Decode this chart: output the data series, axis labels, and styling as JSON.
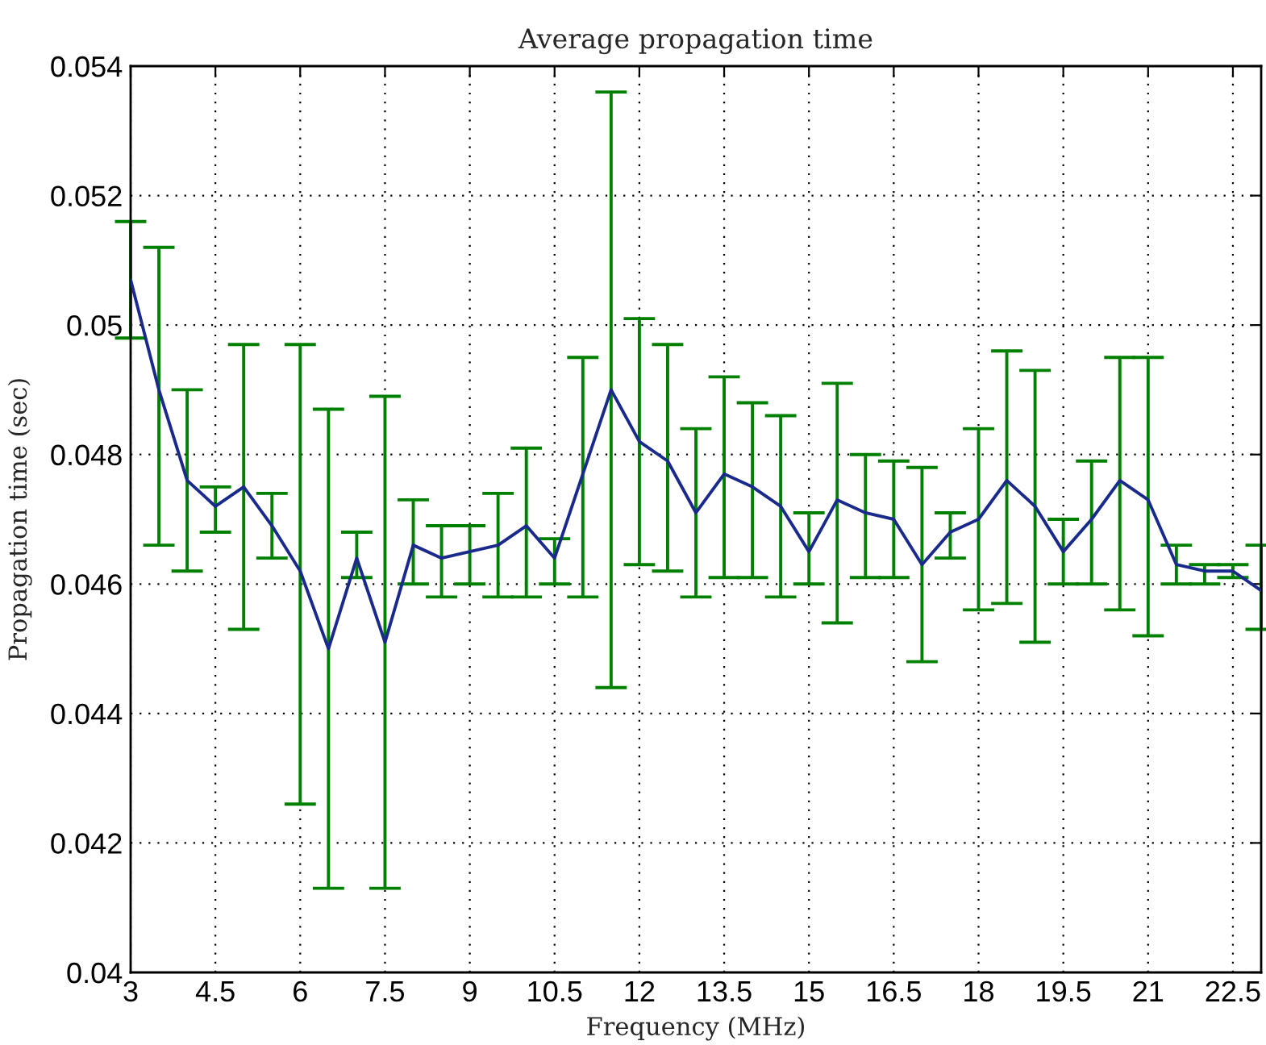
{
  "chart_data": {
    "type": "line",
    "title": "Average propagation time",
    "xlabel": "Frequency (MHz)",
    "ylabel": "Propagation time (sec)",
    "x": [
      3,
      3.5,
      4,
      4.5,
      5,
      5.5,
      6,
      6.5,
      7,
      7.5,
      8,
      8.5,
      9,
      9.5,
      10,
      10.5,
      11,
      11.5,
      12,
      12.5,
      13,
      13.5,
      14,
      14.5,
      15,
      15.5,
      16,
      16.5,
      17,
      17.5,
      18,
      18.5,
      19,
      19.5,
      20,
      20.5,
      21,
      21.5,
      22,
      22.5,
      23
    ],
    "series": [
      {
        "color": "#1a2a8c",
        "values": [
          0.0507,
          0.049,
          0.0476,
          0.0472,
          0.0475,
          0.0469,
          0.0462,
          0.045,
          0.0464,
          0.0451,
          0.0466,
          0.0464,
          0.0465,
          0.0466,
          0.0469,
          0.0464,
          0.0477,
          0.049,
          0.0482,
          0.0479,
          0.0471,
          0.0477,
          0.0475,
          0.0472,
          0.0465,
          0.0473,
          0.0471,
          0.047,
          0.0463,
          0.0468,
          0.047,
          0.0476,
          0.0472,
          0.0465,
          0.047,
          0.0476,
          0.0473,
          0.0463,
          0.0462,
          0.0462,
          0.0459
        ],
        "errors": [
          [
            0.0498,
            0.0516
          ],
          [
            0.0466,
            0.0512
          ],
          [
            0.0462,
            0.049
          ],
          [
            0.0468,
            0.0475
          ],
          [
            0.0453,
            0.0497
          ],
          [
            0.0464,
            0.0474
          ],
          [
            0.0426,
            0.0497
          ],
          [
            0.0413,
            0.0487
          ],
          [
            0.0461,
            0.0468
          ],
          [
            0.0413,
            0.0489
          ],
          [
            0.046,
            0.0473
          ],
          [
            0.0458,
            0.0469
          ],
          [
            0.046,
            0.0469
          ],
          [
            0.0458,
            0.0474
          ],
          [
            0.0458,
            0.0481
          ],
          [
            0.046,
            0.0467
          ],
          [
            0.0458,
            0.0495
          ],
          [
            0.0444,
            0.0536
          ],
          [
            0.0463,
            0.0501
          ],
          [
            0.0462,
            0.0497
          ],
          [
            0.0458,
            0.0484
          ],
          [
            0.0461,
            0.0492
          ],
          [
            0.0461,
            0.0488
          ],
          [
            0.0458,
            0.0486
          ],
          [
            0.046,
            0.0471
          ],
          [
            0.0454,
            0.0491
          ],
          [
            0.0461,
            0.048
          ],
          [
            0.0461,
            0.0479
          ],
          [
            0.0448,
            0.0478
          ],
          [
            0.0464,
            0.0471
          ],
          [
            0.0456,
            0.0484
          ],
          [
            0.0457,
            0.0496
          ],
          [
            0.0451,
            0.0493
          ],
          [
            0.046,
            0.047
          ],
          [
            0.046,
            0.0479
          ],
          [
            0.0456,
            0.0495
          ],
          [
            0.0452,
            0.0495
          ],
          [
            0.046,
            0.0466
          ],
          [
            0.046,
            0.0463
          ],
          [
            0.0461,
            0.0463
          ],
          [
            0.0453,
            0.0466
          ]
        ]
      }
    ],
    "xlim": [
      3,
      23
    ],
    "ylim": [
      0.04,
      0.054
    ],
    "xticks": [
      3,
      4.5,
      6,
      7.5,
      9,
      10.5,
      12,
      13.5,
      15,
      16.5,
      18,
      19.5,
      21,
      22.5
    ],
    "yticks": [
      0.04,
      0.042,
      0.044,
      0.046,
      0.048,
      0.05,
      0.052,
      0.054
    ],
    "grid": true,
    "marker": "none",
    "line_style": "solid",
    "legend": false
  }
}
